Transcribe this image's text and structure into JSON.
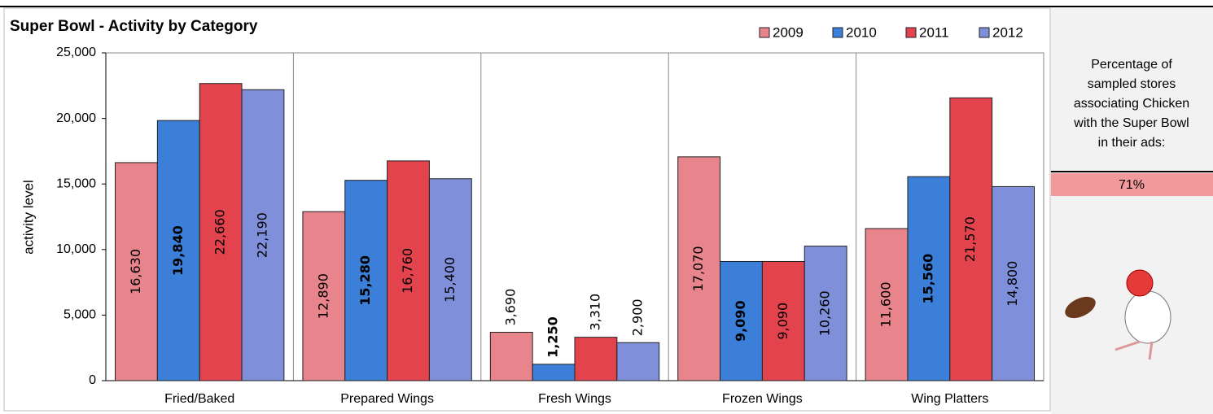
{
  "chart_data": {
    "type": "bar",
    "title": "Super Bowl - Activity by Category",
    "y_label": "activity level",
    "categories": [
      "Fried/Baked",
      "Prepared Wings",
      "Fresh Wings",
      "Frozen Wings",
      "Wing Platters"
    ],
    "series": [
      {
        "name": "2009",
        "color": "#e8858c",
        "values": [
          16630,
          12890,
          3690,
          17070,
          11600
        ],
        "value_labels": [
          "16,630",
          "12,890",
          "3,690",
          "17,070",
          "11,600"
        ]
      },
      {
        "name": "2010",
        "color": "#3b7fd9",
        "values": [
          19840,
          15280,
          1250,
          9090,
          15560
        ],
        "value_labels": [
          "19,840",
          "15,280",
          "1,250",
          "9,090",
          "15,560"
        ],
        "bold_labels": true
      },
      {
        "name": "2011",
        "color": "#e2434d",
        "values": [
          22660,
          16760,
          3310,
          9090,
          21570
        ],
        "value_labels": [
          "22,660",
          "16,760",
          "3,310",
          "9,090",
          "21,570"
        ]
      },
      {
        "name": "2012",
        "color": "#7f8fd9",
        "values": [
          22190,
          15400,
          2900,
          10260,
          14800
        ],
        "value_labels": [
          "22,190",
          "15,400",
          "2,900",
          "10,260",
          "14,800"
        ]
      }
    ],
    "ylim": [
      0,
      25000
    ],
    "yticks": [
      0,
      {
        "value": 5000,
        "label": "5,000"
      },
      {
        "value": 10000,
        "label": "10,000"
      },
      {
        "value": 15000,
        "label": "15,000"
      },
      {
        "value": 20000,
        "label": "20,000"
      },
      {
        "value": 25000,
        "label": "25,000"
      }
    ],
    "grid": true,
    "legend": "top-right"
  },
  "panel": {
    "caption_lines": [
      "Percentage of",
      "sampled stores",
      "associating Chicken",
      "with the Super Bowl",
      "in their ads:"
    ],
    "value_label": "71%"
  }
}
